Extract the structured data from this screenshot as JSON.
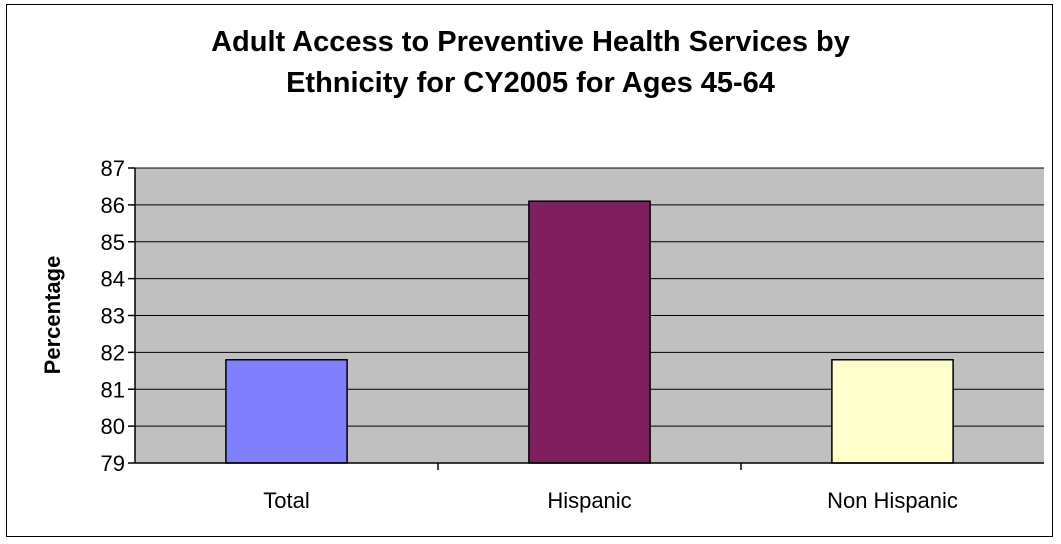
{
  "chart_data": {
    "type": "bar",
    "title_lines": [
      "Adult Access to Preventive Health Services by",
      "Ethnicity for CY2005 for Ages 45-64"
    ],
    "xlabel": "",
    "ylabel": "Percentage",
    "ylim": [
      79,
      87
    ],
    "yticks": [
      "79",
      "80",
      "81",
      "82",
      "83",
      "84",
      "85",
      "86",
      "87"
    ],
    "grid": true,
    "legend": "none",
    "categories": [
      "Total",
      "Hispanic",
      "Non Hispanic"
    ],
    "values": [
      81.8,
      86.1,
      81.8
    ],
    "colors": [
      "#8080ff",
      "#7f1f5f",
      "#ffffcc"
    ],
    "plot_background": "#c0c0c0"
  }
}
